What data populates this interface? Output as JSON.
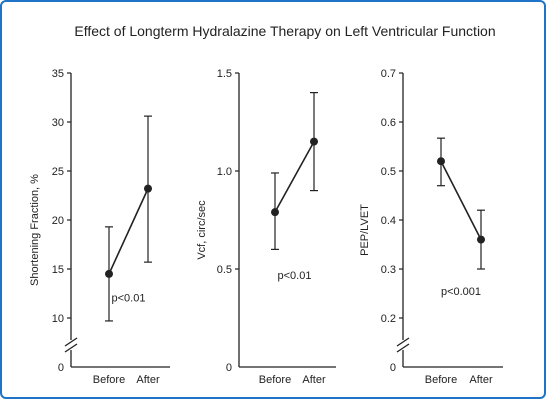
{
  "title": "Effect of Longterm Hydralazine Therapy on Left Ventricular Function",
  "chart_data": [
    {
      "type": "line",
      "ylabel": "Shortening Fraction, %",
      "categories": [
        "Before",
        "After"
      ],
      "values": [
        14.5,
        23.2
      ],
      "error_low": [
        9.7,
        15.7
      ],
      "error_high": [
        19.3,
        30.6
      ],
      "yticks": [
        "35",
        "30",
        "25",
        "20",
        "15",
        "10"
      ],
      "ytick_values": [
        35,
        30,
        25,
        20,
        15,
        10
      ],
      "zero_label": "0",
      "ylim": [
        10,
        35
      ],
      "axis_break": true,
      "annotation": "p<0.01",
      "annotation_value": 12.1
    },
    {
      "type": "line",
      "ylabel": "Vcf, circ/sec",
      "categories": [
        "Before",
        "After"
      ],
      "values": [
        0.79,
        1.15
      ],
      "error_low": [
        0.6,
        0.9
      ],
      "error_high": [
        0.99,
        1.4
      ],
      "yticks": [
        "1.5",
        "1.0",
        "0.5"
      ],
      "ytick_values": [
        1.5,
        1.0,
        0.5
      ],
      "zero_label": "0",
      "ylim": [
        0,
        1.5
      ],
      "axis_break": false,
      "annotation": "p<0.01",
      "annotation_value": 0.47
    },
    {
      "type": "line",
      "ylabel": "PEP/LVET",
      "categories": [
        "Before",
        "After"
      ],
      "values": [
        0.52,
        0.36
      ],
      "error_low": [
        0.47,
        0.3
      ],
      "error_high": [
        0.567,
        0.42
      ],
      "yticks": [
        "0.7",
        "0.6",
        "0.5",
        "0.4",
        "0.3",
        "0.2"
      ],
      "ytick_values": [
        0.7,
        0.6,
        0.5,
        0.4,
        0.3,
        0.2
      ],
      "zero_label": "0",
      "ylim": [
        0.2,
        0.7
      ],
      "axis_break": true,
      "annotation": "p<0.001",
      "annotation_value": 0.255
    }
  ]
}
